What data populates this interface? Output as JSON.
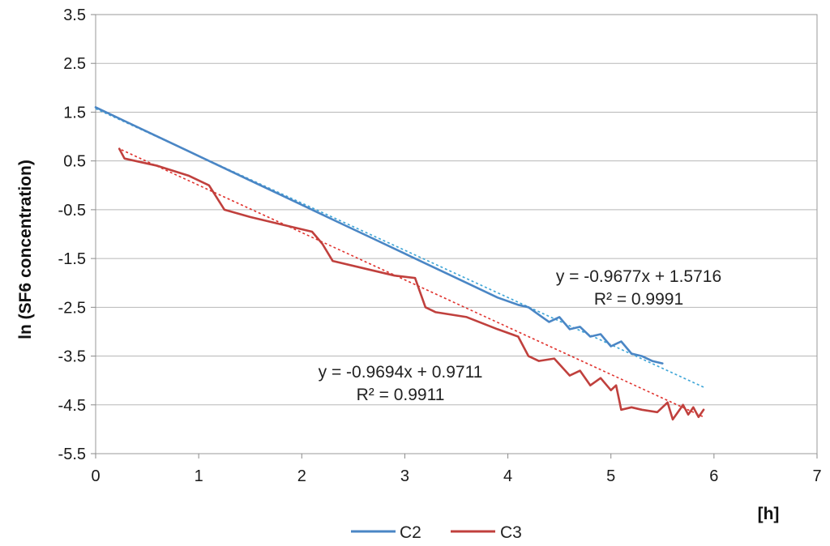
{
  "chart_data": {
    "type": "line",
    "title": "",
    "xlabel": "[h]",
    "ylabel": "ln (SF6 concentration)",
    "xlim": [
      0,
      7
    ],
    "ylim": [
      -5.5,
      3.5
    ],
    "x_ticks": [
      "0",
      "1",
      "2",
      "3",
      "4",
      "5",
      "6",
      "7"
    ],
    "y_ticks": [
      "3.5",
      "2.5",
      "1.5",
      "0.5",
      "-0.5",
      "-1.5",
      "-2.5",
      "-3.5",
      "-4.5",
      "-5.5"
    ],
    "grid": "horizontal",
    "legend_position": "bottom",
    "series": [
      {
        "name": "C2",
        "color": "#4a86c5",
        "x": [
          0.0,
          0.3,
          0.6,
          0.9,
          1.2,
          1.5,
          1.8,
          2.1,
          2.4,
          2.7,
          3.0,
          3.3,
          3.6,
          3.9,
          4.1,
          4.2,
          4.3,
          4.4,
          4.5,
          4.6,
          4.7,
          4.8,
          4.9,
          5.0,
          5.1,
          5.2,
          5.3,
          5.4,
          5.5
        ],
        "y": [
          1.6,
          1.3,
          1.0,
          0.7,
          0.4,
          0.1,
          -0.2,
          -0.5,
          -0.8,
          -1.1,
          -1.4,
          -1.7,
          -2.0,
          -2.3,
          -2.45,
          -2.5,
          -2.65,
          -2.8,
          -2.7,
          -2.95,
          -2.9,
          -3.1,
          -3.05,
          -3.3,
          -3.2,
          -3.45,
          -3.5,
          -3.6,
          -3.65
        ]
      },
      {
        "name": "C3",
        "color": "#c0403d",
        "x": [
          0.23,
          0.28,
          0.6,
          0.9,
          1.1,
          1.25,
          1.5,
          1.8,
          2.1,
          2.2,
          2.3,
          2.6,
          2.9,
          3.1,
          3.15,
          3.2,
          3.3,
          3.6,
          3.9,
          4.1,
          4.2,
          4.3,
          4.45,
          4.6,
          4.7,
          4.8,
          4.9,
          5.0,
          5.05,
          5.1,
          5.2,
          5.3,
          5.45,
          5.55,
          5.6,
          5.7,
          5.75,
          5.8,
          5.85,
          5.9
        ],
        "y": [
          0.75,
          0.55,
          0.4,
          0.2,
          0.0,
          -0.5,
          -0.65,
          -0.8,
          -0.95,
          -1.2,
          -1.55,
          -1.7,
          -1.85,
          -1.9,
          -2.2,
          -2.5,
          -2.6,
          -2.7,
          -2.95,
          -3.1,
          -3.5,
          -3.6,
          -3.55,
          -3.9,
          -3.8,
          -4.1,
          -3.95,
          -4.2,
          -4.1,
          -4.6,
          -4.55,
          -4.6,
          -4.65,
          -4.45,
          -4.8,
          -4.5,
          -4.7,
          -4.55,
          -4.75,
          -4.6
        ]
      }
    ],
    "trendlines": [
      {
        "series": "C2",
        "slope": -0.9677,
        "intercept": 1.5716,
        "x_range": [
          0,
          5.9
        ],
        "color": "#3fa6d8",
        "equation": "y = -0.9677x + 1.5716",
        "r2": "R² = 0.9991"
      },
      {
        "series": "C3",
        "slope": -0.9694,
        "intercept": 0.9711,
        "x_range": [
          0.25,
          5.9
        ],
        "color": "#e0312c",
        "equation": "y = -0.9694x + 0.9711",
        "r2": "R² = 0.9911"
      }
    ]
  }
}
